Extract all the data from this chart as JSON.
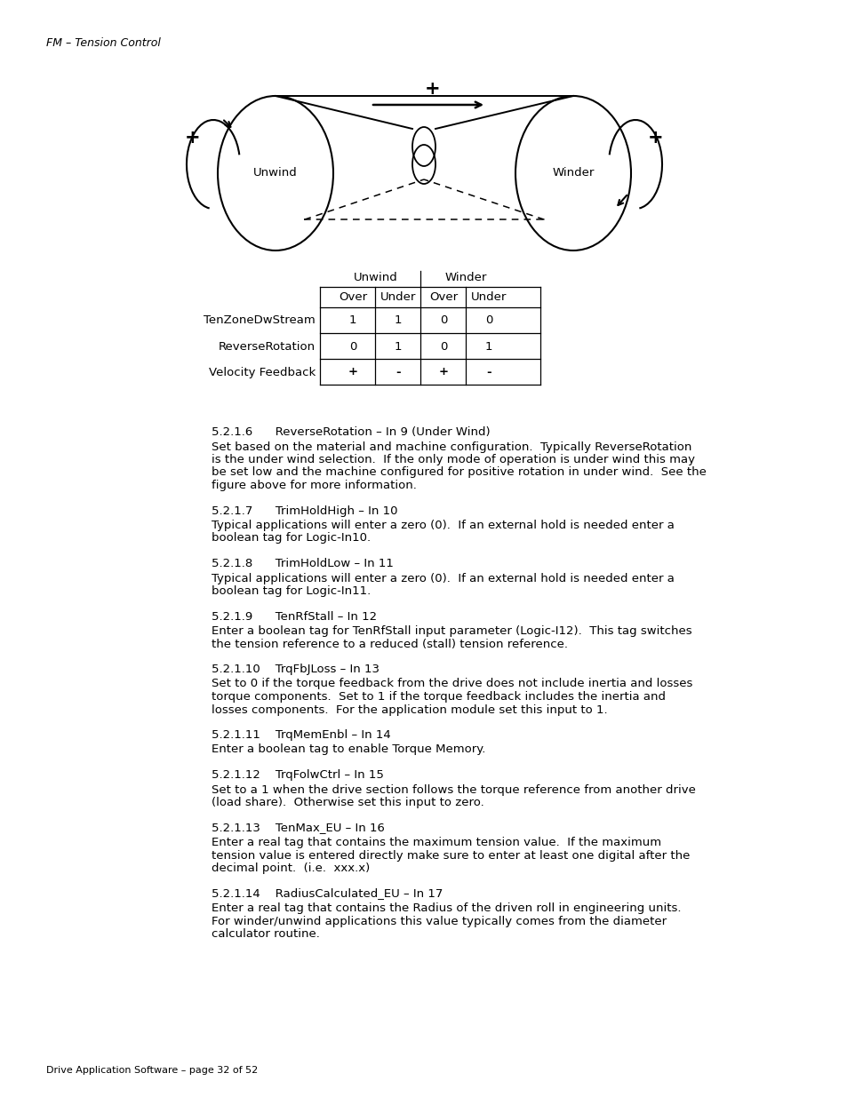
{
  "header_italic": "FM – Tension Control",
  "footer_text": "Drive Application Software – page 32 of 52",
  "bg_color": "#ffffff",
  "diagram": {
    "unwind_label": "Unwind",
    "winder_label": "Winder"
  },
  "table": {
    "col_headers": [
      "Unwind",
      "Winder"
    ],
    "sub_headers": [
      "Over",
      "Under",
      "Over",
      "Under"
    ],
    "rows": [
      {
        "label": "TenZoneDwStream",
        "values": [
          "1",
          "1",
          "0",
          "0"
        ]
      },
      {
        "label": "ReverseRotation",
        "values": [
          "0",
          "1",
          "0",
          "1"
        ]
      },
      {
        "label": "Velocity Feedback",
        "values": [
          "+",
          "-",
          "+",
          "-"
        ]
      }
    ]
  },
  "sections": [
    {
      "heading": "5.2.1.6      ReverseRotation – In 9 (Under Wind)",
      "body": "Set based on the material and machine configuration.  Typically ReverseRotation\nis the under wind selection.  If the only mode of operation is under wind this may\nbe set low and the machine configured for positive rotation in under wind.  See the\nfigure above for more information."
    },
    {
      "heading": "5.2.1.7      TrimHoldHigh – In 10",
      "body": "Typical applications will enter a zero (0).  If an external hold is needed enter a\nboolean tag for Logic-In10."
    },
    {
      "heading": "5.2.1.8      TrimHoldLow – In 11",
      "body": "Typical applications will enter a zero (0).  If an external hold is needed enter a\nboolean tag for Logic-In11."
    },
    {
      "heading": "5.2.1.9      TenRfStall – In 12",
      "body": "Enter a boolean tag for TenRfStall input parameter (Logic-I12).  This tag switches\nthe tension reference to a reduced (stall) tension reference."
    },
    {
      "heading": "5.2.1.10    TrqFbJLoss – In 13",
      "body": "Set to 0 if the torque feedback from the drive does not include inertia and losses\ntorque components.  Set to 1 if the torque feedback includes the inertia and\nlosses components.  For the application module set this input to 1."
    },
    {
      "heading": "5.2.1.11    TrqMemEnbl – In 14",
      "body": "Enter a boolean tag to enable Torque Memory."
    },
    {
      "heading": "5.2.1.12    TrqFolwCtrl – In 15",
      "body": "Set to a 1 when the drive section follows the torque reference from another drive\n(load share).  Otherwise set this input to zero."
    },
    {
      "heading": "5.2.1.13    TenMax_EU – In 16",
      "body": "Enter a real tag that contains the maximum tension value.  If the maximum\ntension value is entered directly make sure to enter at least one digital after the\ndecimal point.  (i.e.  xxx.x)"
    },
    {
      "heading": "5.2.1.14    RadiusCalculated_EU – In 17",
      "body": "Enter a real tag that contains the Radius of the driven roll in engineering units.\nFor winder/unwind applications this value typically comes from the diameter\ncalculator routine."
    }
  ]
}
